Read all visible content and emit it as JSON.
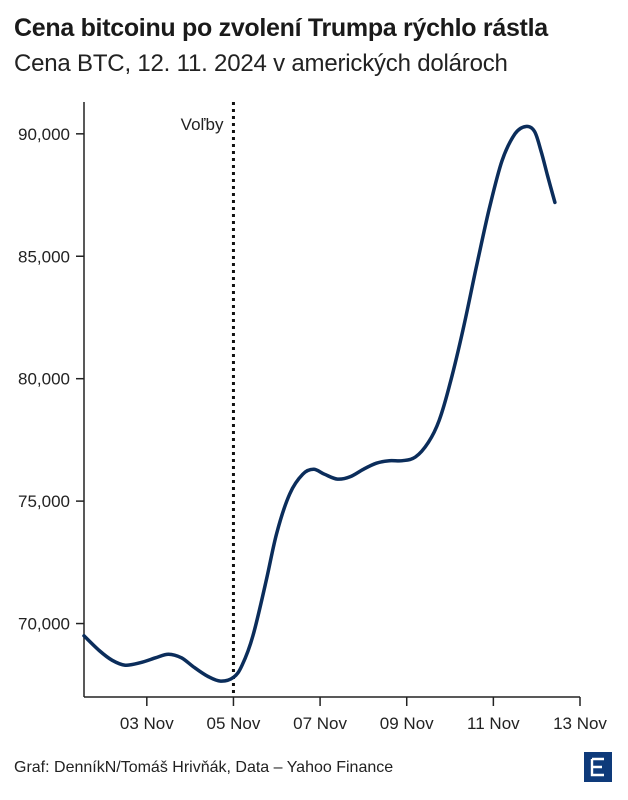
{
  "title": "Cena bitcoinu po zvolení Trumpa rýchlo rástla",
  "subtitle": "Cena BTC, 12. 11. 2024 v amerických dolároch",
  "source": "Graf: DenníkN/Tomáš Hrivňák, Data – Yahoo Finance",
  "logo_color": "#0e3a7a",
  "line_color": "#0b2d5b",
  "chart_data": {
    "type": "line",
    "title": "Cena bitcoinu po zvolení Trumpa rýchlo rástla",
    "subtitle": "Cena BTC, 12. 11. 2024 v amerických dolároch",
    "xlabel": "",
    "ylabel": "",
    "xlim": [
      1.55,
      13.0
    ],
    "ylim": [
      67000,
      91300
    ],
    "x_ticks": [
      {
        "x": 3,
        "label": "03 Nov"
      },
      {
        "x": 5,
        "label": "05 Nov"
      },
      {
        "x": 7,
        "label": "07 Nov"
      },
      {
        "x": 9,
        "label": "09 Nov"
      },
      {
        "x": 11,
        "label": "11 Nov"
      },
      {
        "x": 13,
        "label": "13 Nov"
      }
    ],
    "y_ticks": [
      {
        "y": 70000,
        "label": "70,000"
      },
      {
        "y": 75000,
        "label": "75,000"
      },
      {
        "y": 80000,
        "label": "80,000"
      },
      {
        "y": 85000,
        "label": "85,000"
      },
      {
        "y": 90000,
        "label": "90,000"
      }
    ],
    "grid": false,
    "annotation": {
      "x": 5,
      "label": "Voľby"
    },
    "series": [
      {
        "x": [
          1.55,
          1.9,
          2.2,
          2.5,
          2.85,
          3.2,
          3.5,
          3.8,
          4.1,
          4.4,
          4.7,
          5.0,
          5.2,
          5.45,
          5.75,
          6.0,
          6.3,
          6.6,
          6.85,
          7.1,
          7.4,
          7.7,
          8.0,
          8.3,
          8.6,
          8.9,
          9.2,
          9.5,
          9.75,
          10.0,
          10.3,
          10.6,
          10.9,
          11.2,
          11.5,
          11.75,
          11.95,
          12.1,
          12.25,
          12.42
        ],
        "y": [
          69500,
          68900,
          68500,
          68300,
          68400,
          68600,
          68750,
          68600,
          68200,
          67850,
          67650,
          67800,
          68300,
          69500,
          71700,
          73700,
          75300,
          76100,
          76300,
          76100,
          75900,
          76000,
          76300,
          76550,
          76650,
          76650,
          76800,
          77400,
          78300,
          79800,
          82000,
          84500,
          86900,
          88900,
          90000,
          90300,
          90100,
          89300,
          88300,
          87200
        ]
      }
    ]
  }
}
